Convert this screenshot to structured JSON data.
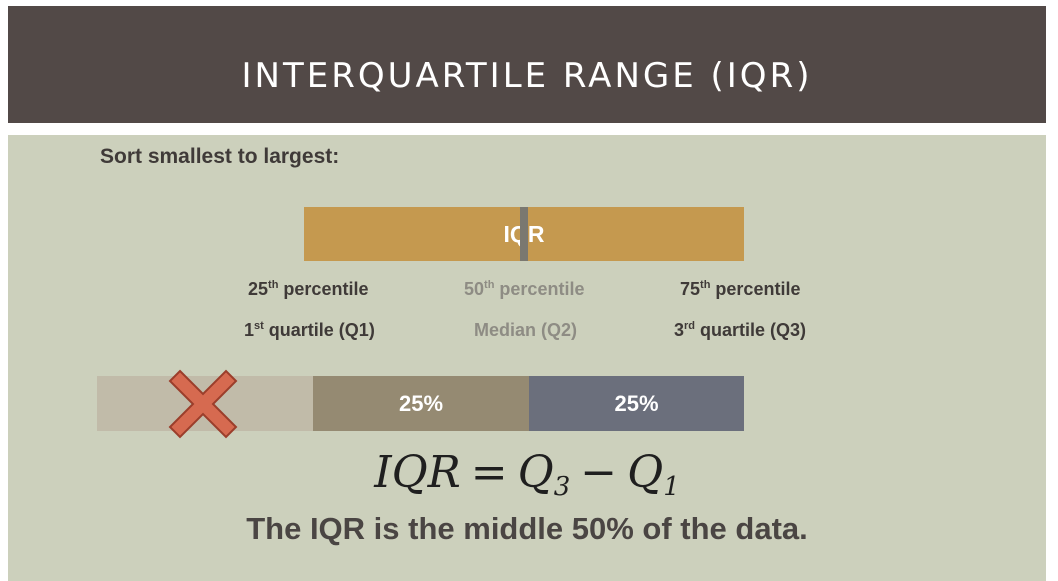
{
  "header": {
    "title": "INTERQUARTILE RANGE (IQR)"
  },
  "slide": {
    "subtitle": "Sort smallest to largest:",
    "iqr_bar_label": "IQR",
    "percentiles": {
      "p25": {
        "num": "25",
        "sup": "th",
        "rest": " percentile",
        "q_sup_num": "1",
        "q_sup": "st",
        "q_rest": " quartile (Q1)"
      },
      "p50": {
        "num": "50",
        "sup": "th",
        "rest": " percentile",
        "q_text": "Median (Q2)"
      },
      "p75": {
        "num": "75",
        "sup": "th",
        "rest": " percentile",
        "q_sup_num": "3",
        "q_sup": "rd",
        "q_rest": " quartile (Q3)"
      }
    },
    "segments": [
      {
        "label": "",
        "color": "#c1bba9"
      },
      {
        "label": "25%",
        "color": "#958a72"
      },
      {
        "label": "25%",
        "color": "#6b6f7c"
      }
    ],
    "formula": {
      "lhs": "IQR",
      "eq": "=",
      "q3": "Q",
      "q3_sub": "3",
      "minus": "−",
      "q1": "Q",
      "q1_sub": "1"
    },
    "bottom_text": "The IQR is the middle 50% of the data."
  },
  "colors": {
    "header_bg": "#524947",
    "content_bg": "#ccd0bc",
    "iqr_bar": "#c5994f",
    "cross": "#d66a50"
  },
  "icons": {
    "excluded": "x-mark-icon"
  }
}
